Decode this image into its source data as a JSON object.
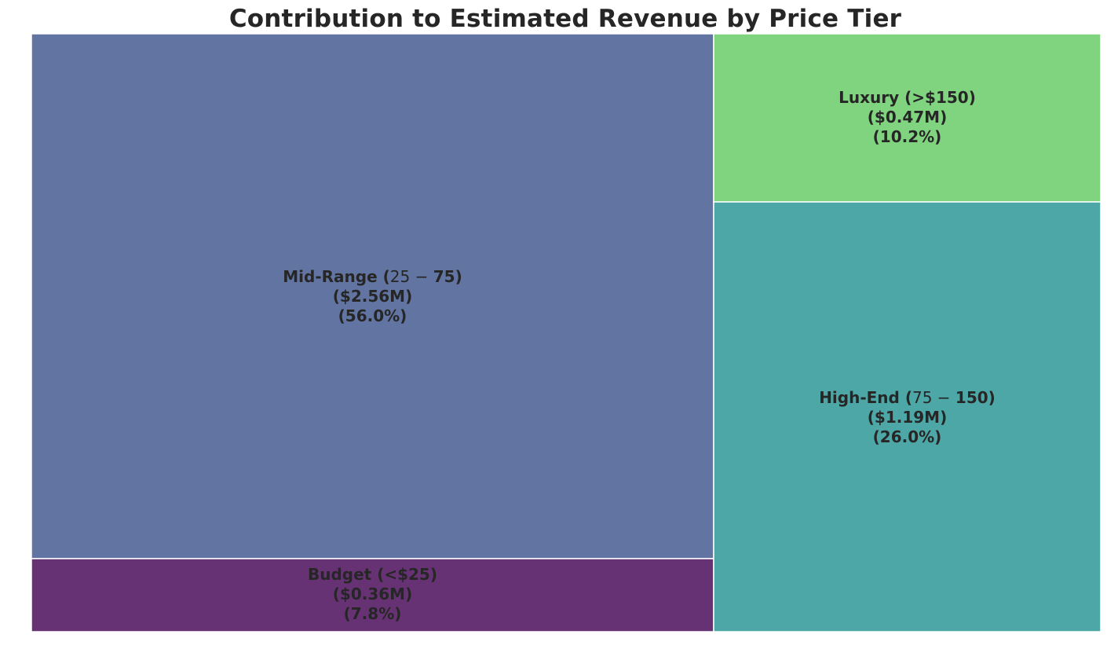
{
  "chart_data": {
    "type": "treemap",
    "title": "Contribution to Estimated Revenue by Price Tier",
    "items": [
      {
        "name": "Mid-Range",
        "label_prefix": "Mid-Range (",
        "label_range_start": "25",
        "label_range_sep": "−",
        "label_range_end": "75",
        "label_suffix": ")",
        "value_label": "($2.56M)",
        "percent_label": "(56.0%)",
        "value": 2.56,
        "percent": 56.0,
        "color": "#6274a1"
      },
      {
        "name": "Budget",
        "label": "Budget (<$25)",
        "value_label": "($0.36M)",
        "percent_label": "(7.8%)",
        "value": 0.36,
        "percent": 7.8,
        "color": "#673274"
      },
      {
        "name": "Luxury",
        "label": "Luxury (>$150)",
        "value_label": "($0.47M)",
        "percent_label": "(10.2%)",
        "value": 0.47,
        "percent": 10.2,
        "color": "#80d480"
      },
      {
        "name": "High-End",
        "label_prefix": "High-End (",
        "label_range_start": "75",
        "label_range_sep": "−",
        "label_range_end": "150",
        "label_suffix": ")",
        "value_label": "($1.19M)",
        "percent_label": "(26.0%)",
        "value": 1.19,
        "percent": 26.0,
        "color": "#4ca7a6"
      }
    ]
  }
}
